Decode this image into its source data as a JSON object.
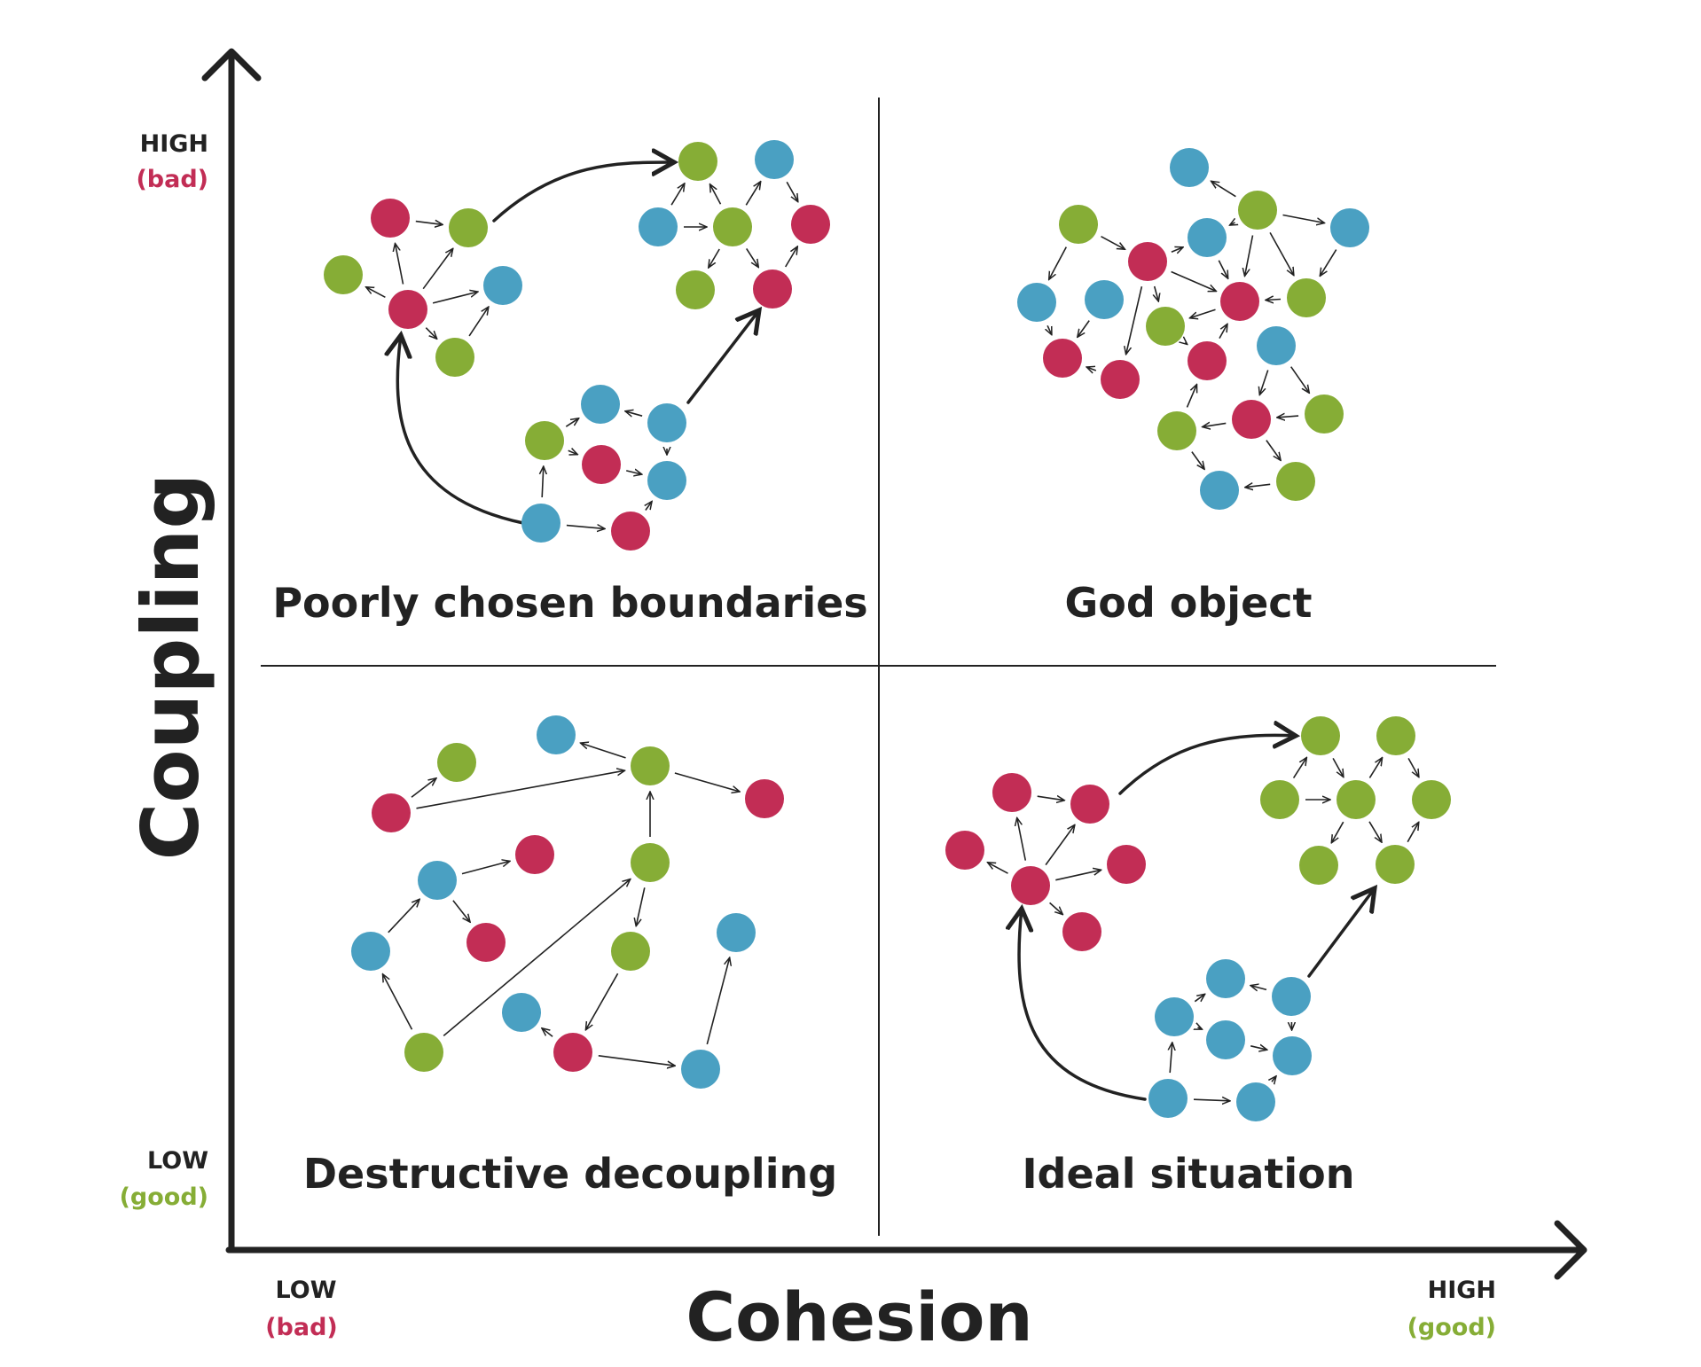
{
  "colors": {
    "red": "#c22d55",
    "green": "#86ad36",
    "blue": "#4aa0c2",
    "ink": "#222222",
    "bad": "#c22d55",
    "good": "#86ad36"
  },
  "axes": {
    "y_title": "Coupling",
    "x_title": "Cohesion",
    "y_high": "HIGH",
    "y_high_note": "(bad)",
    "y_low": "LOW",
    "y_low_note": "(good)",
    "x_low": "LOW",
    "x_low_note": "(bad)",
    "x_high": "HIGH",
    "x_high_note": "(good)"
  },
  "quadrants": {
    "top_left": "Poorly chosen boundaries",
    "top_right": "God object",
    "bottom_left": "Destructive decoupling",
    "bottom_right": "Ideal situation"
  }
}
